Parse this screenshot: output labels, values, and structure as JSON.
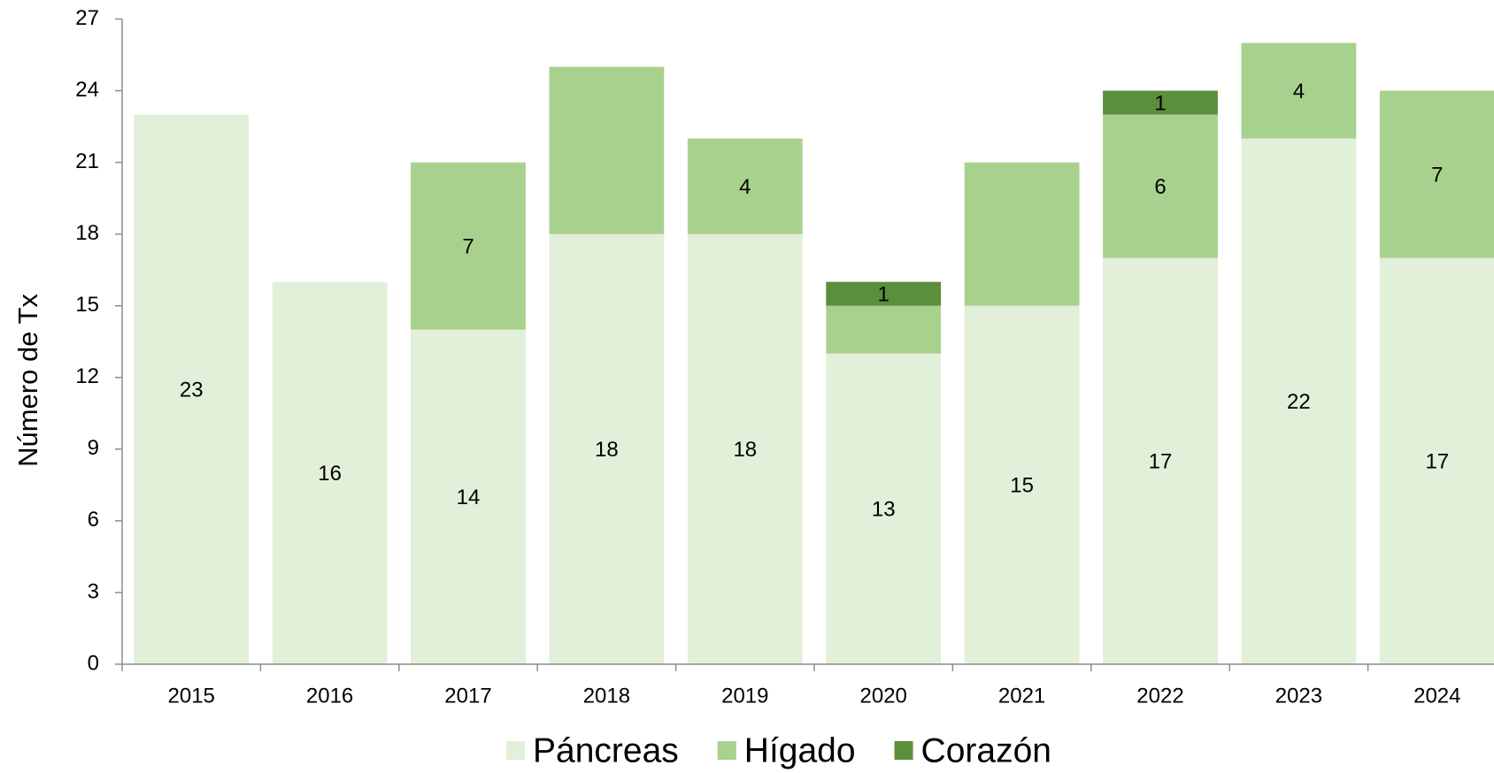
{
  "chart_data": {
    "type": "stacked-bar",
    "y_label": "Número de Tx",
    "categories": [
      "2015",
      "2016",
      "2017",
      "2018",
      "2019",
      "2020",
      "2021",
      "2022",
      "2023",
      "2024"
    ],
    "series": [
      {
        "name": "Páncreas",
        "color": "#e2efd9",
        "values": [
          23,
          16,
          14,
          18,
          18,
          13,
          15,
          17,
          22,
          17
        ]
      },
      {
        "name": "Hígado",
        "color": "#a9d18e",
        "values": [
          null,
          null,
          7,
          7,
          4,
          2,
          6,
          6,
          4,
          7
        ],
        "value_labels": [
          null,
          null,
          "7",
          null,
          "4",
          null,
          null,
          "6",
          "4",
          "7"
        ]
      },
      {
        "name": "Corazón",
        "color": "#5b8f3b",
        "values": [
          null,
          null,
          null,
          null,
          null,
          1,
          null,
          1,
          null,
          null
        ]
      }
    ],
    "ylim": [
      0,
      27
    ],
    "yticks": [
      0,
      3,
      6,
      9,
      12,
      15,
      18,
      21,
      24,
      27
    ],
    "legend": "bottom"
  }
}
